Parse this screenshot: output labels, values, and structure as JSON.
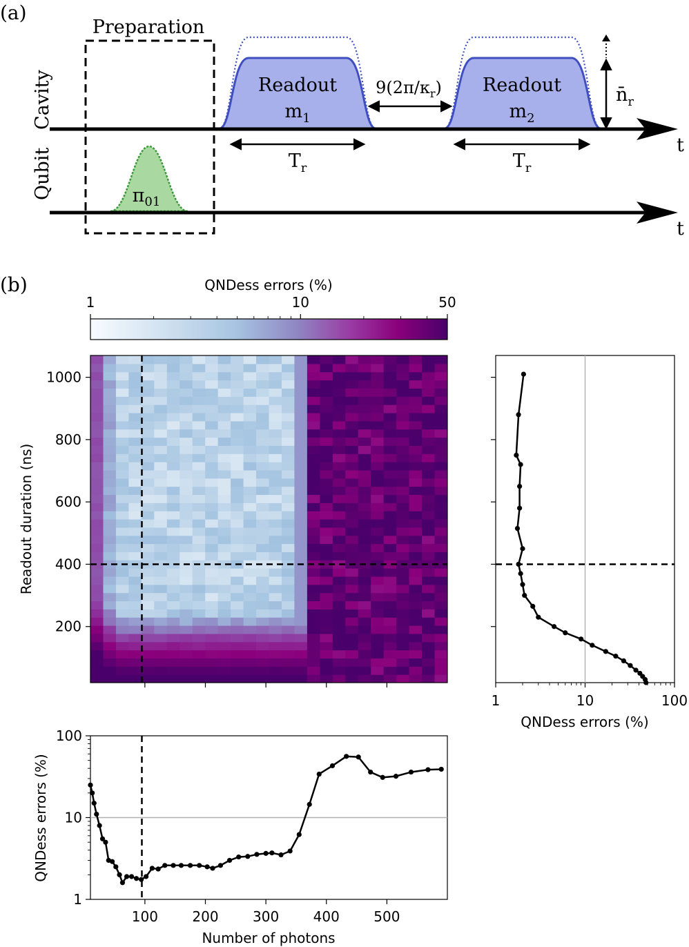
{
  "panel_a": {
    "label": "(a)",
    "cavity_label": "Cavity",
    "qubit_label": "Qubit",
    "preparation_label": "Preparation",
    "readout1": {
      "title": "Readout",
      "sub_main": "m",
      "sub_index": "1"
    },
    "readout2": {
      "title": "Readout",
      "sub_main": "m",
      "sub_index": "2"
    },
    "gap_label": "9(2π/κ",
    "gap_sub": "r",
    "gap_close": ")",
    "tr_main": "T",
    "tr_sub": "r",
    "nbar_main": "n̄",
    "nbar_sub": "r",
    "pi_main": "π",
    "pi_sub": "01",
    "time_axis": "t",
    "colors": {
      "readout_fill": "#a8b0ec",
      "readout_edge": "#3f4fc0",
      "pi_fill": "#a9d8a0",
      "pi_edge": "#3a9a3a"
    }
  },
  "panel_b": {
    "label": "(b)",
    "colorbar": {
      "title": "QNDess errors (%)",
      "ticks": [
        "1",
        "10",
        "50"
      ],
      "range": [
        1,
        50
      ],
      "scale": "log",
      "colors": [
        "#f7fbff",
        "#cfe0ef",
        "#a3c3e0",
        "#8f86c3",
        "#8e3aa0",
        "#8b007c",
        "#49006a"
      ]
    },
    "heatmap": {
      "ylabel": "Readout duration (ns)",
      "yticks": [
        "200",
        "400",
        "600",
        "800",
        "1000"
      ],
      "x_range": [
        10,
        600
      ],
      "y_range": [
        20,
        1070
      ],
      "dashed_x": 95,
      "dashed_y": 400
    },
    "side_plot": {
      "xlabel": "QNDess errors (%)",
      "xticks": [
        "1",
        "10",
        "100"
      ],
      "x_scale": "log",
      "x_range": [
        1,
        100
      ],
      "reference_line": 10,
      "dashed_y": 400
    },
    "bottom_plot": {
      "ylabel": "QNDess errors (%)",
      "xlabel": "Number of photons",
      "yticks": [
        "1",
        "10",
        "100"
      ],
      "xticks": [
        "100",
        "200",
        "300",
        "400",
        "500"
      ],
      "y_scale": "log",
      "y_range": [
        1,
        100
      ],
      "x_range": [
        10,
        600
      ],
      "reference_line": 10,
      "dashed_x": 95
    }
  },
  "chart_data": [
    {
      "type": "heatmap",
      "x_range": [
        10,
        600
      ],
      "y_range": [
        20,
        1070
      ],
      "z_scale": "log",
      "z_range": [
        1,
        50
      ],
      "regions": [
        {
          "description_photons": "below 370",
          "level_percent": 2
        },
        {
          "description_photons": "above 370",
          "level_percent": 40
        }
      ]
    },
    {
      "type": "line",
      "xlabel": "QNDess errors (%)",
      "ylabel": "Readout duration (ns)",
      "x_scale": "log",
      "xlim": [
        1,
        100
      ],
      "ylim": [
        20,
        1070
      ],
      "x": [
        48,
        47,
        44,
        41,
        37,
        32,
        27,
        22,
        17,
        12,
        9,
        6,
        4.5,
        3,
        2.6,
        2.1,
        2.0,
        1.9,
        1.8,
        2.0,
        1.75,
        1.85,
        1.85,
        1.9,
        1.7,
        1.8,
        2.05
      ],
      "y": [
        20,
        30,
        40,
        50,
        60,
        75,
        90,
        105,
        120,
        140,
        160,
        180,
        200,
        230,
        265,
        300,
        335,
        370,
        400,
        450,
        515,
        580,
        650,
        720,
        750,
        880,
        1010
      ]
    },
    {
      "type": "line",
      "xlabel": "Number of photons",
      "ylabel": "QNDess errors (%)",
      "y_scale": "log",
      "xlim": [
        10,
        600
      ],
      "ylim": [
        1,
        100
      ],
      "x": [
        10,
        13,
        16,
        20,
        25,
        30,
        35,
        40,
        46,
        52,
        58,
        63,
        70,
        78,
        86,
        94,
        102,
        112,
        122,
        133,
        147,
        160,
        175,
        190,
        203,
        212,
        225,
        240,
        255,
        270,
        285,
        300,
        310,
        325,
        340,
        355,
        372,
        388,
        410,
        433,
        453,
        473,
        493,
        515,
        540,
        568,
        590
      ],
      "y": [
        25,
        20,
        15,
        11,
        8,
        5.5,
        5,
        3,
        2.9,
        2.5,
        2.0,
        1.6,
        1.9,
        1.9,
        1.8,
        1.75,
        1.9,
        2.4,
        2.35,
        2.6,
        2.6,
        2.6,
        2.6,
        2.6,
        2.5,
        2.4,
        2.6,
        3.0,
        3.3,
        3.35,
        3.55,
        3.65,
        3.7,
        3.5,
        3.9,
        6.2,
        14.5,
        34,
        43,
        56,
        55,
        36,
        31,
        32,
        36,
        38.5,
        39
      ]
    }
  ]
}
